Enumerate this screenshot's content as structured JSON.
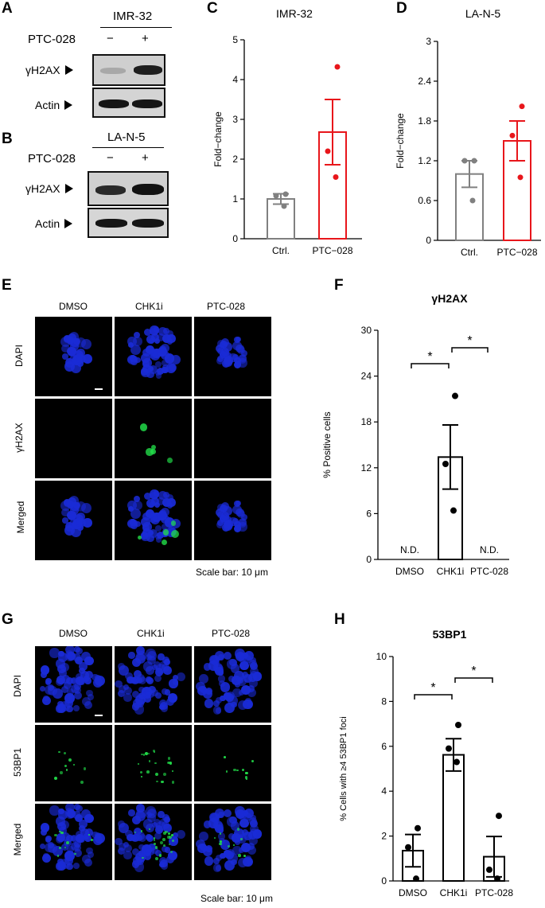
{
  "panels": {
    "A": {
      "letter": "A",
      "cell_line": "IMR-32",
      "treatment_label": "PTC-028",
      "lane_minus": "−",
      "lane_plus": "+",
      "row1_label": "γH2AX",
      "row2_label": "Actin"
    },
    "B": {
      "letter": "B",
      "cell_line": "LA-N-5",
      "treatment_label": "PTC-028",
      "lane_minus": "−",
      "lane_plus": "+",
      "row1_label": "γH2AX",
      "row2_label": "Actin"
    },
    "C": {
      "letter": "C"
    },
    "D": {
      "letter": "D"
    },
    "E": {
      "letter": "E",
      "columns": [
        "DMSO",
        "CHK1i",
        "PTC-028"
      ],
      "rows": [
        "DAPI",
        "γH2AX",
        "Merged"
      ],
      "scale_bar": "Scale bar: 10 μm"
    },
    "F": {
      "letter": "F"
    },
    "G": {
      "letter": "G",
      "columns": [
        "DMSO",
        "CHK1i",
        "PTC-028"
      ],
      "rows": [
        "DAPI",
        "53BP1",
        "Merged"
      ],
      "scale_bar": "Scale bar: 10 μm"
    },
    "H": {
      "letter": "H"
    }
  },
  "colors": {
    "ctrl_bar": "#808080",
    "ptc_bar": "#e8161b",
    "black": "#000000",
    "dapi": "#1a2bd6",
    "foci": "#22e04a"
  },
  "chart_data": [
    {
      "id": "C",
      "type": "bar",
      "title": "IMR-32",
      "ylabel": "Fold−change",
      "categories": [
        "Ctrl.",
        "PTC−028"
      ],
      "values": [
        1.0,
        2.68
      ],
      "errors": [
        0.13,
        0.82
      ],
      "points": [
        [
          1.12,
          1.08,
          0.82
        ],
        [
          4.32,
          2.2,
          1.55
        ]
      ],
      "bar_colors": [
        "#808080",
        "#e8161b"
      ],
      "ylim": [
        0,
        5
      ],
      "yticks": [
        "0",
        "1",
        "2",
        "3",
        "4",
        "5"
      ]
    },
    {
      "id": "D",
      "type": "bar",
      "title": "LA-N-5",
      "ylabel": "Fold−change",
      "categories": [
        "Ctrl.",
        "PTC−028"
      ],
      "values": [
        1.0,
        1.5
      ],
      "errors": [
        0.2,
        0.3
      ],
      "points": [
        [
          1.2,
          1.2,
          0.6
        ],
        [
          2.02,
          1.58,
          0.95
        ]
      ],
      "bar_colors": [
        "#808080",
        "#e8161b"
      ],
      "ylim": [
        0,
        3
      ],
      "yticks": [
        "0",
        "0.6",
        "1.2",
        "1.8",
        "2.4",
        "3"
      ]
    },
    {
      "id": "F",
      "type": "bar",
      "title": "γH2AX",
      "ylabel": "% Positive cells",
      "categories": [
        "DMSO",
        "CHK1i",
        "PTC-028"
      ],
      "values": [
        0,
        13.4,
        0
      ],
      "errors": [
        0,
        4.2,
        0
      ],
      "points": [
        [],
        [
          21.4,
          12.5,
          6.4
        ],
        []
      ],
      "value_labels": [
        "N.D.",
        "",
        "N.D."
      ],
      "bar_colors": [
        "#000000",
        "#000000",
        "#000000"
      ],
      "ylim": [
        0,
        30
      ],
      "yticks": [
        "0",
        "6",
        "12",
        "18",
        "24",
        "30"
      ],
      "significance": [
        {
          "from": 0,
          "to": 1,
          "label": "*"
        },
        {
          "from": 1,
          "to": 2,
          "label": "*"
        }
      ]
    },
    {
      "id": "H",
      "type": "bar",
      "title": "53BP1",
      "ylabel": "% Cells with ≥4 53BP1 foci",
      "categories": [
        "DMSO",
        "CHK1i",
        "PTC-028"
      ],
      "values": [
        1.35,
        5.62,
        1.08
      ],
      "errors": [
        0.72,
        0.72,
        0.9
      ],
      "points": [
        [
          2.35,
          1.5,
          0.1
        ],
        [
          6.95,
          5.9,
          5.3
        ],
        [
          2.9,
          0.5,
          0.1
        ]
      ],
      "bar_colors": [
        "#000000",
        "#000000",
        "#000000"
      ],
      "ylim": [
        0,
        10
      ],
      "yticks": [
        "0",
        "2",
        "4",
        "6",
        "8",
        "10"
      ],
      "significance": [
        {
          "from": 0,
          "to": 1,
          "label": "*"
        },
        {
          "from": 1,
          "to": 2,
          "label": "*"
        }
      ]
    }
  ]
}
